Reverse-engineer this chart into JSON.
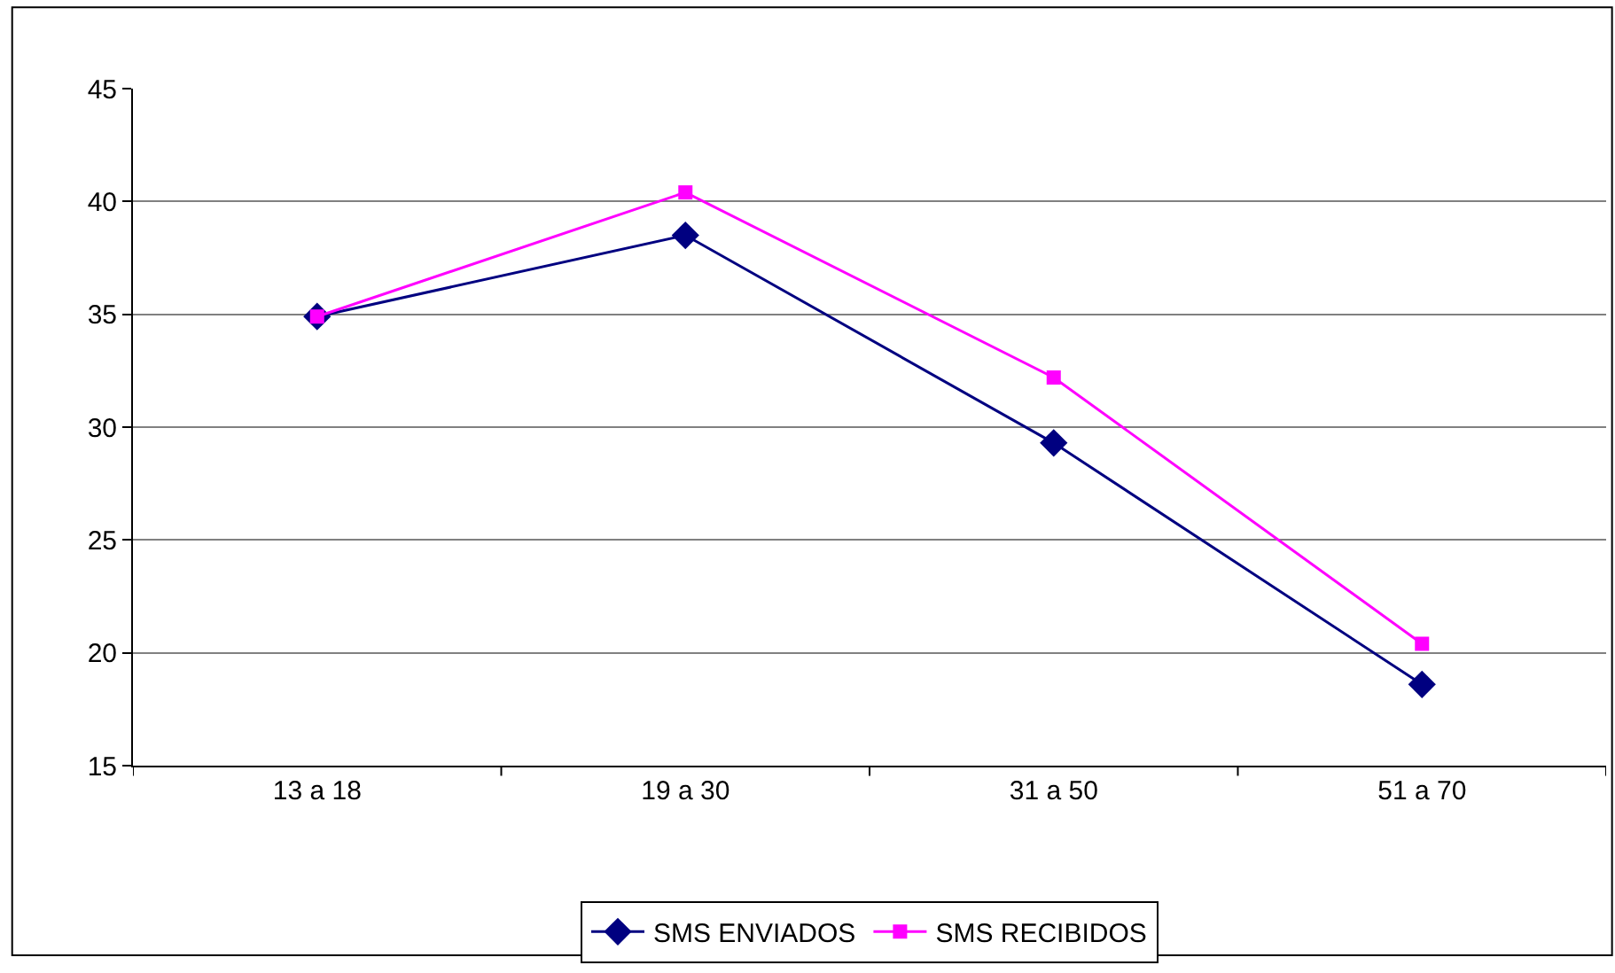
{
  "chart_data": {
    "type": "line",
    "categories": [
      "13 a 18",
      "19 a 30",
      "31 a 50",
      "51 a 70"
    ],
    "series": [
      {
        "name": "SMS ENVIADOS",
        "color": "#000080",
        "values": [
          34.9,
          38.5,
          29.3,
          18.6
        ],
        "marker": "diamond"
      },
      {
        "name": "SMS RECIBIDOS",
        "color": "#ff00ff",
        "values": [
          34.9,
          40.4,
          32.2,
          20.4
        ],
        "marker": "square"
      }
    ],
    "ylim": [
      15,
      45
    ],
    "yticks": [
      15,
      20,
      25,
      30,
      35,
      40,
      45
    ],
    "grid": "y",
    "legend": "bottom",
    "line_style": "solid"
  }
}
